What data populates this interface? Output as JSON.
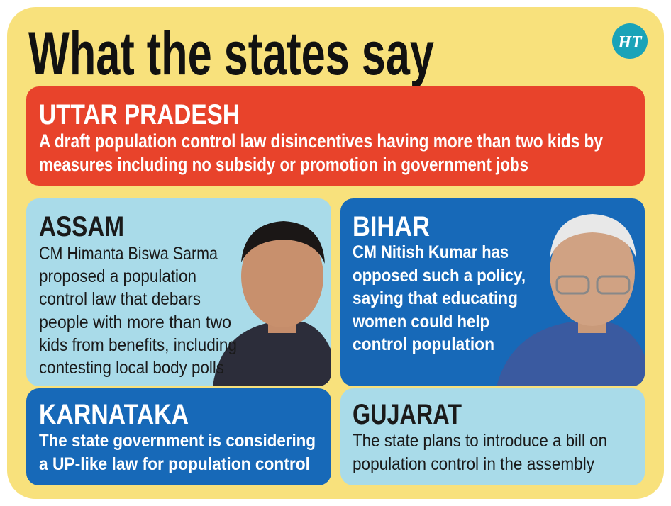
{
  "header": {
    "title": "What the states say",
    "logo": "HT"
  },
  "sections": [
    {
      "name": "UTTAR PRADESH",
      "lines": [
        "A draft population control law disincentives having more than two kids by",
        "measures including no subsidy or promotion in government jobs"
      ]
    },
    {
      "name": "ASSAM",
      "lines": [
        "CM Himanta Biswa Sarma",
        "proposed a population",
        "control law that debars",
        "people with more than two",
        "kids from benefits, including",
        "contesting local body polls"
      ]
    },
    {
      "name": "BIHAR",
      "lines": [
        "CM Nitish Kumar has",
        "opposed such a policy,",
        "saying that educating",
        "women could help",
        "control population"
      ]
    },
    {
      "name": "KARNATAKA",
      "lines": [
        "The state government is considering",
        "a UP-like law for population control"
      ]
    },
    {
      "name": "GUJARAT",
      "lines": [
        "The state plans to introduce a bill on",
        "population control in the assembly"
      ]
    }
  ]
}
